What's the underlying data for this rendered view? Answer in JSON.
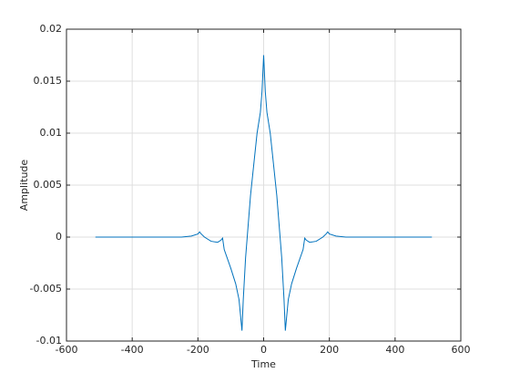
{
  "chart_data": {
    "type": "line",
    "xlabel": "Time",
    "ylabel": "Amplitude",
    "x": [
      -512,
      -300,
      -250,
      -220,
      -200,
      -195,
      -190,
      -180,
      -160,
      -140,
      -130,
      -125,
      -120,
      -100,
      -85,
      -75,
      -66,
      -62,
      -55,
      -50,
      -40,
      -30,
      -20,
      -10,
      -5,
      0,
      5,
      10,
      20,
      30,
      40,
      50,
      55,
      62,
      66,
      75,
      85,
      100,
      120,
      125,
      130,
      140,
      160,
      180,
      190,
      195,
      200,
      220,
      250,
      300,
      512
    ],
    "values": [
      0,
      0,
      0,
      0.0001,
      0.0003,
      0.0005,
      0.0003,
      0,
      -0.0004,
      -0.0005,
      -0.0003,
      -0.0001,
      -0.0012,
      -0.003,
      -0.0045,
      -0.006,
      -0.009,
      -0.006,
      -0.002,
      0,
      0.004,
      0.007,
      0.01,
      0.012,
      0.014,
      0.0175,
      0.014,
      0.012,
      0.01,
      0.007,
      0.004,
      0,
      -0.002,
      -0.006,
      -0.009,
      -0.006,
      -0.0045,
      -0.003,
      -0.0012,
      -0.0001,
      -0.0003,
      -0.0005,
      -0.0004,
      0,
      0.0003,
      0.0005,
      0.0003,
      0.0001,
      0,
      0,
      0
    ],
    "color": "#0072bd",
    "xlim": [
      -600,
      600
    ],
    "xticks": [
      -600,
      -400,
      -200,
      0,
      200,
      400,
      600
    ],
    "ylim": [
      -0.01,
      0.02
    ],
    "yticks": [
      -0.01,
      -0.005,
      0,
      0.005,
      0.01,
      0.015,
      0.02
    ],
    "grid": true
  }
}
